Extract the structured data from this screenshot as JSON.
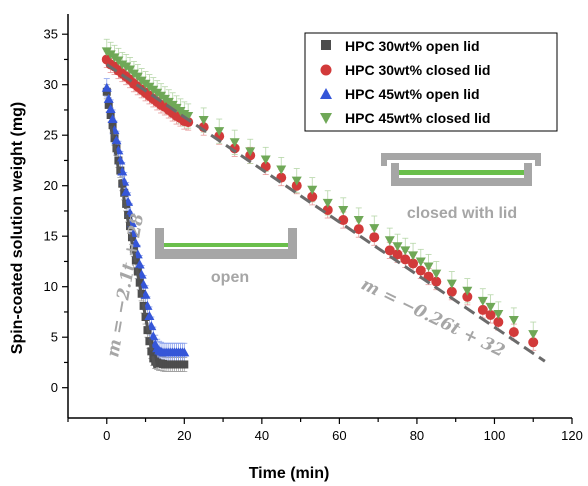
{
  "chart_data": {
    "type": "scatter",
    "xlabel": "Time (min)",
    "ylabel": "Spin-coated solution weight (mg)",
    "xlim": [
      -10,
      120
    ],
    "ylim": [
      -3,
      37
    ],
    "xticks": [
      0,
      20,
      40,
      60,
      80,
      100,
      120
    ],
    "yticks": [
      0,
      5,
      10,
      15,
      20,
      25,
      30,
      35
    ],
    "grid": false,
    "legend_position": "top-right",
    "series": [
      {
        "name": "HPC 30wt% open lid",
        "color": "#4d4d4d",
        "errcolor": "#a0a0a0",
        "marker": "square",
        "x": [
          0,
          0.5,
          1,
          1.5,
          2,
          2.5,
          3,
          3.5,
          4,
          4.5,
          5,
          5.5,
          6,
          6.5,
          7,
          7.5,
          8,
          8.5,
          9,
          9.5,
          10,
          10.5,
          11,
          11.5,
          12,
          12.5,
          13,
          13.5,
          14,
          14.5,
          15,
          15.5,
          16,
          16.5,
          17,
          17.5,
          18,
          18.5,
          19,
          19.5,
          20
        ],
        "y": [
          29.3,
          28,
          27,
          26,
          24.7,
          23.7,
          22.5,
          21.5,
          20.2,
          19.3,
          18.2,
          17.1,
          16,
          14.9,
          13.7,
          12.6,
          11.5,
          10.4,
          9.3,
          8.1,
          7,
          5.7,
          4.6,
          3.6,
          2.9,
          2.6,
          2.5,
          2.4,
          2.4,
          2.35,
          2.3,
          2.3,
          2.3,
          2.3,
          2.3,
          2.3,
          2.3,
          2.3,
          2.3,
          2.3,
          2.3
        ],
        "err": 0.7
      },
      {
        "name": "HPC 30wt% closed lid",
        "color": "#d23a3a",
        "errcolor": "#e69a9a",
        "marker": "circle",
        "x": [
          0,
          1,
          2,
          3,
          4,
          5,
          6,
          7,
          8,
          9,
          10,
          11,
          12,
          13,
          14,
          15,
          16,
          17,
          18,
          19,
          20,
          21,
          25,
          29,
          33,
          37,
          41,
          45,
          49,
          53,
          57,
          61,
          65,
          69,
          73,
          75,
          77,
          79,
          81,
          83,
          85,
          89,
          93,
          97,
          99,
          101,
          105,
          110
        ],
        "y": [
          32.5,
          32,
          31.8,
          31.4,
          31.1,
          30.8,
          30.5,
          30.1,
          29.8,
          29.5,
          29.2,
          28.9,
          28.6,
          28.3,
          28,
          27.8,
          27.5,
          27.2,
          26.9,
          26.7,
          26.4,
          26.3,
          25.8,
          24.9,
          23.7,
          23,
          21.9,
          20.8,
          20,
          18.9,
          17.6,
          16.6,
          15.7,
          14.9,
          13.6,
          13.2,
          12.7,
          12.3,
          11.6,
          11,
          10.5,
          9.5,
          9,
          7.7,
          7.2,
          6.5,
          5.5,
          4.5
        ],
        "err": 0.8
      },
      {
        "name": "HPC 45wt% open lid",
        "color": "#3556d8",
        "errcolor": "#8aa0ec",
        "marker": "triangle-up",
        "x": [
          0,
          0.5,
          1,
          1.5,
          2,
          2.5,
          3,
          3.5,
          4,
          4.5,
          5,
          5.5,
          6,
          6.5,
          7,
          7.5,
          8,
          8.5,
          9,
          9.5,
          10,
          10.5,
          11,
          11.5,
          12,
          12.5,
          13,
          13.5,
          14,
          14.5,
          15,
          15.5,
          16,
          16.5,
          17,
          17.5,
          18,
          18.5,
          19,
          19.5,
          20
        ],
        "y": [
          29.7,
          28.6,
          27.6,
          26.6,
          25.5,
          24.5,
          23.5,
          22.5,
          21.4,
          20.4,
          19.4,
          18.4,
          17.3,
          16.3,
          15.3,
          14.3,
          13.2,
          12.2,
          11.2,
          10.2,
          9.2,
          8.1,
          7.1,
          6.1,
          5.1,
          4.3,
          3.9,
          3.7,
          3.6,
          3.5,
          3.5,
          3.5,
          3.5,
          3.5,
          3.5,
          3.5,
          3.5,
          3.5,
          3.5,
          3.5,
          3.5
        ],
        "err": 0.9
      },
      {
        "name": "HPC 45wt% closed lid",
        "color": "#6fa857",
        "errcolor": "#b5d6a7",
        "marker": "triangle-down",
        "x": [
          0,
          1,
          2,
          3,
          4,
          5,
          6,
          7,
          8,
          9,
          10,
          11,
          12,
          13,
          14,
          15,
          16,
          17,
          18,
          19,
          20,
          21,
          25,
          29,
          33,
          37,
          41,
          45,
          49,
          53,
          57,
          61,
          65,
          69,
          73,
          75,
          77,
          79,
          81,
          83,
          85,
          89,
          93,
          97,
          99,
          101,
          105,
          110
        ],
        "y": [
          33.3,
          33,
          32.7,
          32.4,
          32,
          31.8,
          31.5,
          31.1,
          30.8,
          30.4,
          30.1,
          29.8,
          29.5,
          29.2,
          28.9,
          28.6,
          28.3,
          28,
          27.7,
          27.4,
          27.1,
          26.9,
          26.5,
          25.4,
          24.3,
          23.4,
          22.6,
          21.6,
          20.5,
          19.6,
          18.3,
          17.6,
          16.6,
          15.8,
          14.6,
          14,
          13.6,
          13.1,
          12.5,
          12,
          11.3,
          10.3,
          9.6,
          8.6,
          8,
          7.3,
          6.7,
          5.3
        ],
        "err": 1.2
      }
    ],
    "fits": [
      {
        "label": "m = −2.1t + 28",
        "slope": -2.1,
        "intercept": 28,
        "x0": 1,
        "x1": 12.5,
        "color": "#555555"
      },
      {
        "label": "m = −0.26t + 32",
        "slope": -0.26,
        "intercept": 32,
        "x0": 0,
        "x1": 113,
        "color": "#6b6b6b"
      }
    ],
    "annotations": {
      "open_label": "open",
      "closed_label": "closed with lid"
    }
  }
}
